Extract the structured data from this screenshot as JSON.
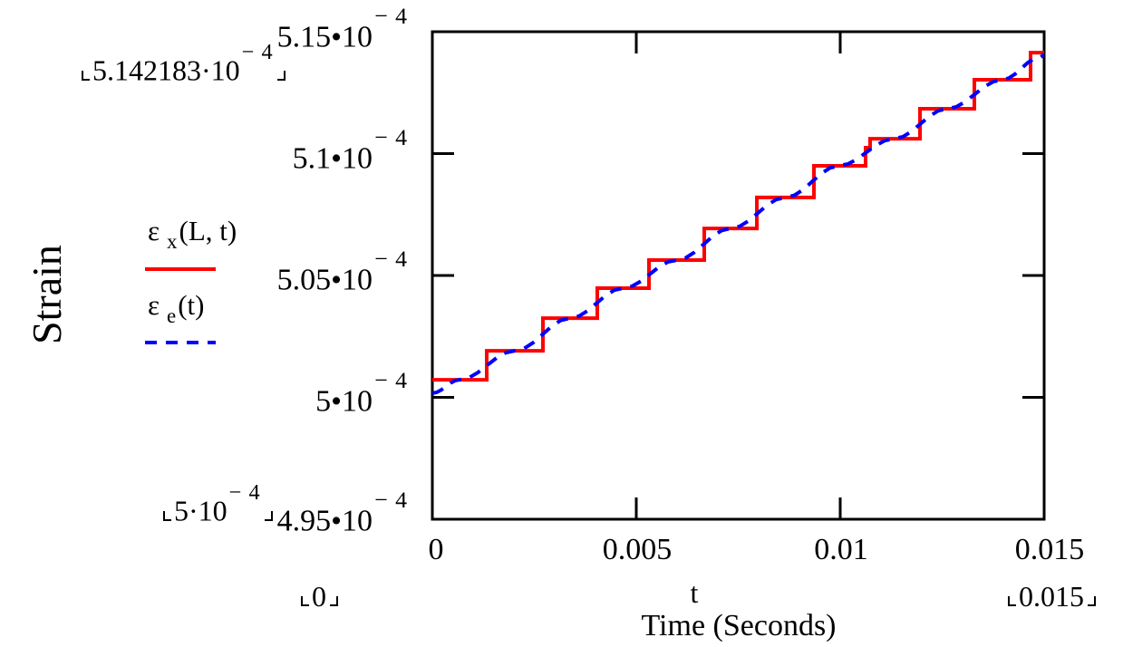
{
  "figure": {
    "y_axis_title": "Strain",
    "x_axis_variable": "t",
    "x_axis_description": "Time (Seconds)"
  },
  "legend": {
    "entries": [
      {
        "eps": "ε",
        "sub": "x",
        "args": "(L, t)",
        "color": "#ff0000",
        "line": "solid"
      },
      {
        "eps": "ε",
        "sub": "e",
        "args": "(t)",
        "color": "#0000ff",
        "line": "dashed"
      }
    ]
  },
  "axes": {
    "y_tick_labels": [
      {
        "base": "5.15•10",
        "sup": "− 4"
      },
      {
        "base": "5.1•10",
        "sup": "− 4"
      },
      {
        "base": "5.05•10",
        "sup": "− 4"
      },
      {
        "base": "5•10",
        "sup": "− 4"
      },
      {
        "base": "4.95•10",
        "sup": "− 4"
      }
    ],
    "x_tick_labels": [
      "0",
      "0.005",
      "0.01",
      "0.015"
    ],
    "placeholders": {
      "y_max": {
        "base": "5.142183·10",
        "sup": "− 4"
      },
      "y_min": {
        "base": "5·10",
        "sup": "− 4"
      },
      "x_min": "0",
      "x_max": "0.015"
    }
  },
  "colors": {
    "red": "#ff0000",
    "blue": "#0000ff",
    "axis": "#000000",
    "background": "#ffffff"
  },
  "chart_data": {
    "type": "line",
    "title": "",
    "xlabel": "t  Time (Seconds)",
    "ylabel": "Strain",
    "xlim": [
      0,
      0.015
    ],
    "ylim": [
      0.000495,
      0.000515
    ],
    "x_tick_values": [
      0,
      0.005,
      0.01,
      0.015
    ],
    "y_tick_values": [
      0.000495,
      0.0005,
      0.000505,
      0.00051,
      0.000515
    ],
    "trace_min_shown": 0.0005,
    "trace_max_shown": 0.0005142183,
    "grid": false,
    "legend_position": "left-outside",
    "series": [
      {
        "name": "εx(L,t)",
        "kind": "step",
        "color": "#ff0000",
        "style": "solid",
        "steps": [
          {
            "t0": 0,
            "t1": 0.001333,
            "v": 0.00050072
          },
          {
            "t0": 0.001333,
            "t1": 0.002711,
            "v": 0.00050191
          },
          {
            "t0": 0.002711,
            "t1": 0.004044,
            "v": 0.00050325
          },
          {
            "t0": 0.004044,
            "t1": 0.005311,
            "v": 0.00050448
          },
          {
            "t0": 0.005311,
            "t1": 0.006667,
            "v": 0.00050563
          },
          {
            "t0": 0.006667,
            "t1": 0.007956,
            "v": 0.00050693
          },
          {
            "t0": 0.007956,
            "t1": 0.009356,
            "v": 0.0005082
          },
          {
            "t0": 0.009356,
            "t1": 0.010622,
            "v": 0.0005095
          },
          {
            "t0": 0.010622,
            "t1": 0.010733,
            "v": 0.00051024
          },
          {
            "t0": 0.010733,
            "t1": 0.011956,
            "v": 0.00051061
          },
          {
            "t0": 0.011956,
            "t1": 0.013289,
            "v": 0.00051184
          },
          {
            "t0": 0.013289,
            "t1": 0.014667,
            "v": 0.00051303
          },
          {
            "t0": 0.014667,
            "t1": 0.015,
            "v": 0.00051414
          }
        ]
      },
      {
        "name": "εe(t)",
        "kind": "smooth",
        "color": "#0000ff",
        "style": "dashed",
        "anchors": [
          [
            0,
            0.00050017
          ],
          [
            0.000667,
            0.00050072
          ],
          [
            0.002022,
            0.00050191
          ],
          [
            0.003378,
            0.00050325
          ],
          [
            0.004678,
            0.00050448
          ],
          [
            0.005989,
            0.00050563
          ],
          [
            0.007311,
            0.00050693
          ],
          [
            0.008656,
            0.0005082
          ],
          [
            0.009967,
            0.0005095
          ],
          [
            0.011322,
            0.00051061
          ],
          [
            0.012622,
            0.00051184
          ],
          [
            0.013978,
            0.00051303
          ],
          [
            0.0149,
            0.00051395
          ],
          [
            0.015,
            0.00051405
          ]
        ]
      }
    ]
  }
}
